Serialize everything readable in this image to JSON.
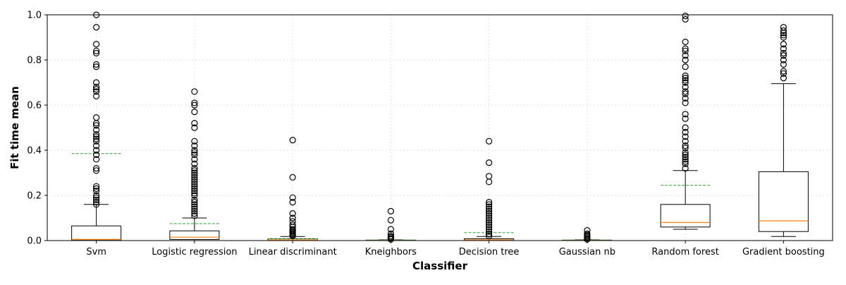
{
  "chart_data": {
    "type": "box",
    "title": "",
    "xlabel": "Classifier",
    "ylabel": "Fit time mean",
    "ylim": [
      0,
      1.0
    ],
    "yticks": [
      0.0,
      0.2,
      0.4,
      0.6,
      0.8,
      1.0
    ],
    "ytick_labels": [
      "0.0",
      "0.2",
      "0.4",
      "0.6",
      "0.8",
      "1.0"
    ],
    "grid": true,
    "colors": {
      "box": "#000000",
      "median": "#ff7f0e",
      "mean": "#2ca02c",
      "grid": "#d9d9d9"
    },
    "categories": [
      "Svm",
      "Logistic regression",
      "Linear discriminant",
      "Kneighbors",
      "Decision tree",
      "Gaussian nb",
      "Random forest",
      "Gradient boosting"
    ],
    "boxes": [
      {
        "whisker_low": 0.0,
        "q1": 0.001,
        "median": 0.005,
        "q3": 0.065,
        "whisker_high": 0.16,
        "mean": 0.385,
        "outliers": [
          0.16,
          0.17,
          0.18,
          0.19,
          0.2,
          0.22,
          0.23,
          0.24,
          0.31,
          0.32,
          0.36,
          0.38,
          0.4,
          0.42,
          0.44,
          0.45,
          0.46,
          0.47,
          0.49,
          0.51,
          0.52,
          0.545,
          0.64,
          0.66,
          0.67,
          0.68,
          0.7,
          0.77,
          0.78,
          0.83,
          0.84,
          0.87,
          0.945,
          1.0
        ]
      },
      {
        "whisker_low": 0.0,
        "q1": 0.005,
        "median": 0.015,
        "q3": 0.043,
        "whisker_high": 0.1,
        "mean": 0.075,
        "outliers": [
          0.11,
          0.12,
          0.13,
          0.14,
          0.15,
          0.16,
          0.17,
          0.18,
          0.2,
          0.21,
          0.22,
          0.23,
          0.24,
          0.25,
          0.26,
          0.27,
          0.28,
          0.29,
          0.3,
          0.31,
          0.32,
          0.34,
          0.36,
          0.38,
          0.39,
          0.4,
          0.42,
          0.44,
          0.5,
          0.52,
          0.57,
          0.6,
          0.61,
          0.66
        ]
      },
      {
        "whisker_low": 0.0,
        "q1": 0.001,
        "median": 0.003,
        "q3": 0.008,
        "whisker_high": 0.018,
        "mean": 0.008,
        "outliers": [
          0.02,
          0.025,
          0.03,
          0.035,
          0.04,
          0.045,
          0.05,
          0.06,
          0.07,
          0.085,
          0.1,
          0.12,
          0.17,
          0.19,
          0.28,
          0.445
        ]
      },
      {
        "whisker_low": 0.0,
        "q1": 0.0005,
        "median": 0.001,
        "q3": 0.002,
        "whisker_high": 0.003,
        "mean": 0.002,
        "outliers": [
          0.005,
          0.01,
          0.015,
          0.02,
          0.03,
          0.05,
          0.09,
          0.13
        ]
      },
      {
        "whisker_low": 0.0,
        "q1": 0.001,
        "median": 0.003,
        "q3": 0.008,
        "whisker_high": 0.018,
        "mean": 0.035,
        "outliers": [
          0.02,
          0.03,
          0.04,
          0.05,
          0.06,
          0.07,
          0.08,
          0.09,
          0.1,
          0.11,
          0.12,
          0.13,
          0.14,
          0.15,
          0.16,
          0.17,
          0.26,
          0.285,
          0.345,
          0.44
        ]
      },
      {
        "whisker_low": 0.0,
        "q1": 0.0005,
        "median": 0.001,
        "q3": 0.002,
        "whisker_high": 0.003,
        "mean": 0.002,
        "outliers": [
          0.005,
          0.01,
          0.015,
          0.02,
          0.025,
          0.03,
          0.045
        ]
      },
      {
        "whisker_low": 0.05,
        "q1": 0.06,
        "median": 0.08,
        "q3": 0.16,
        "whisker_high": 0.31,
        "mean": 0.245,
        "outliers": [
          0.32,
          0.34,
          0.35,
          0.36,
          0.37,
          0.38,
          0.39,
          0.41,
          0.42,
          0.44,
          0.46,
          0.48,
          0.5,
          0.54,
          0.56,
          0.61,
          0.63,
          0.65,
          0.66,
          0.68,
          0.7,
          0.71,
          0.72,
          0.73,
          0.77,
          0.8,
          0.82,
          0.84,
          0.85,
          0.88,
          0.98,
          0.995
        ]
      },
      {
        "whisker_low": 0.018,
        "q1": 0.04,
        "median": 0.087,
        "q3": 0.305,
        "whisker_high": 0.695,
        "mean": null,
        "outliers": [
          0.72,
          0.74,
          0.75,
          0.78,
          0.8,
          0.82,
          0.83,
          0.85,
          0.87,
          0.9,
          0.91,
          0.92,
          0.93,
          0.945
        ]
      }
    ]
  }
}
